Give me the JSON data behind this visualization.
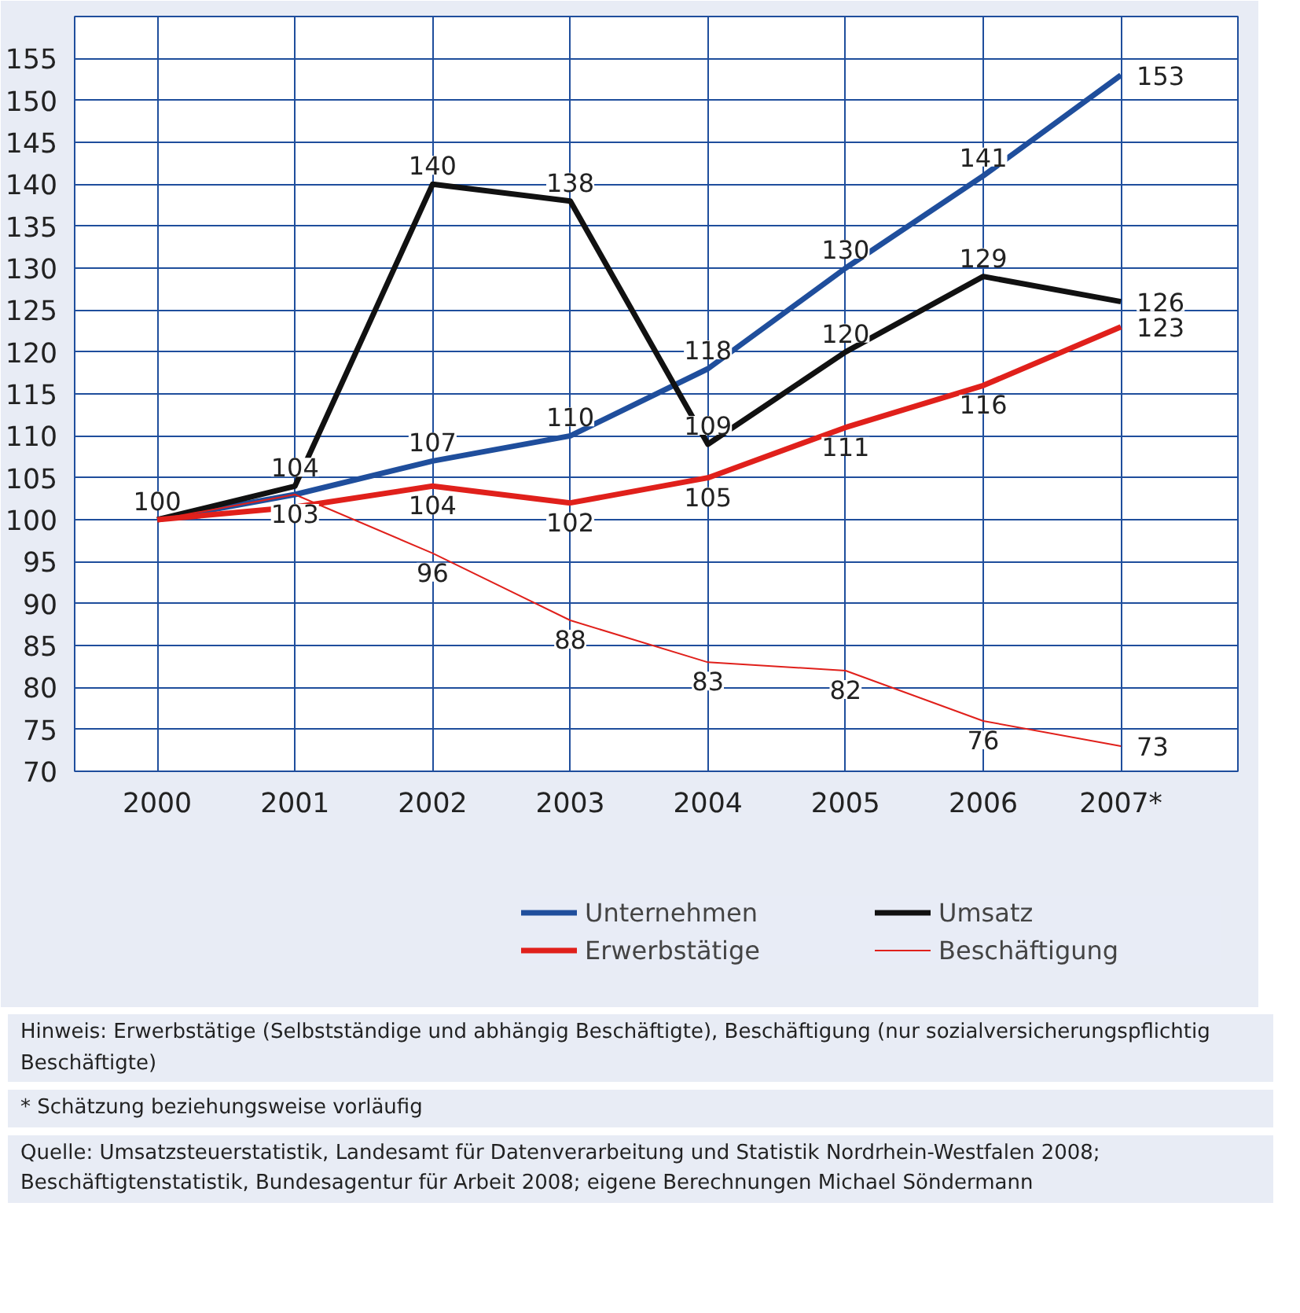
{
  "chart_data": {
    "type": "line",
    "categories": [
      "2000",
      "2001",
      "2002",
      "2003",
      "2004",
      "2005",
      "2006",
      "2007*"
    ],
    "series": [
      {
        "name": "Unternehmen",
        "color": "#1f4e9c",
        "values": [
          100,
          103,
          107,
          110,
          118,
          130,
          141,
          153
        ],
        "value_labels": [
          "100",
          "103",
          "107",
          "110",
          "118",
          "130",
          "141",
          "153"
        ]
      },
      {
        "name": "Umsatz",
        "color": "#111111",
        "values": [
          100,
          104,
          140,
          138,
          109,
          120,
          129,
          126
        ],
        "value_labels": [
          null,
          "104",
          "140",
          "138",
          "109",
          "120",
          "129",
          "126"
        ]
      },
      {
        "name": "Erwerbstätige",
        "color": "#e0201b",
        "values": [
          100,
          101.5,
          104,
          102,
          105,
          111,
          116,
          123
        ],
        "value_labels": [
          null,
          null,
          "104",
          "102",
          "105",
          "111",
          "116",
          "123"
        ]
      },
      {
        "name": "Beschäftigung",
        "color": "#e0201b",
        "values": [
          100,
          103,
          96,
          88,
          83,
          82,
          76,
          73
        ],
        "value_labels": [
          null,
          null,
          "96",
          "88",
          "83",
          "82",
          "76",
          "73"
        ]
      }
    ],
    "ylim": [
      70,
      160
    ],
    "yticks": [
      70,
      75,
      80,
      85,
      90,
      95,
      100,
      105,
      110,
      115,
      120,
      125,
      130,
      135,
      140,
      145,
      150,
      155
    ],
    "grid": true,
    "legend": "bottom",
    "marker": "none",
    "line_style": "solid",
    "annotations": [
      "Hinweis: Erwerbstätige (Selbstständige und abhängig Beschäftigte), Beschäftigung (nur sozialversicherungspflichtig Beschäftigte)",
      "* Schätzung beziehungsweise vorläufig",
      "Quelle: Umsatzsteuerstatistik, Landesamt für Datenverarbeitung und Statistik Nordrhein-Westfalen 2008; Beschäftigtenstatistik, Bundesagentur für Arbeit 2008; eigene Berechnungen Michael Söndermann"
    ]
  }
}
